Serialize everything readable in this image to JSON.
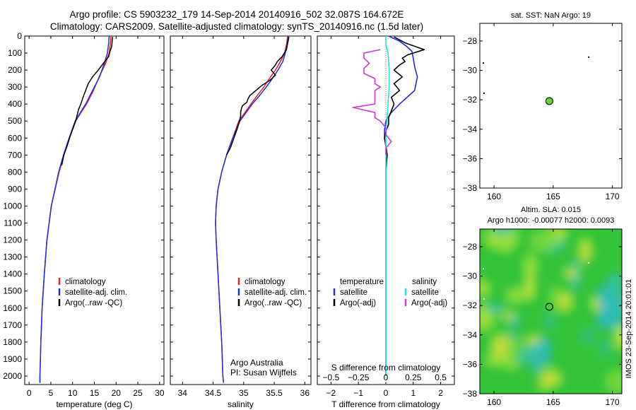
{
  "header": {
    "line1": "Argo profile: CS 5903232_179 14-Sep-2014 20140916_502 32.087S 164.672E",
    "line2": "Climatology: CARS2009. Satellite-adjusted climatology: synTS_20140916.nc (1.5d later)"
  },
  "side_stamp": "IMOS 23-Sep-2014 20:01:01",
  "colors": {
    "clim": "#e8231f",
    "sat": "#1f2ce8",
    "argo": "#000000",
    "sat_s": "#22e4e8",
    "argo_s": "#d23bd2",
    "dot": "#66d633"
  },
  "chart_data": [
    {
      "type": "line",
      "name": "temperature-profile",
      "xlabel": "temperature (deg C)",
      "ylabel": "",
      "xlim": [
        -1,
        31
      ],
      "ylim": [
        2050,
        0
      ],
      "xticks": [
        0,
        5,
        10,
        15,
        20,
        25,
        30
      ],
      "xticklabels": [
        "0",
        "5",
        "10",
        "15",
        "20",
        "25",
        "30"
      ],
      "yticks": [
        0,
        100,
        200,
        300,
        400,
        500,
        600,
        700,
        800,
        900,
        1000,
        1100,
        1200,
        1300,
        1400,
        1500,
        1600,
        1700,
        1800,
        1900,
        2000
      ],
      "yticklabels": [
        "0",
        "100",
        "200",
        "300",
        "400",
        "500",
        "600",
        "700",
        "800",
        "900",
        "1000",
        "1100",
        "1200",
        "1300",
        "1400",
        "1500",
        "1600",
        "1700",
        "1800",
        "1900",
        "2000"
      ],
      "legend": [
        "climatology",
        "satellite-adj. clim.",
        "Argo(..raw -QC)"
      ],
      "series": [
        {
          "key": "clim",
          "depth": [
            0,
            40,
            100,
            160,
            240,
            320,
            400,
            500,
            600,
            700,
            800,
            1000,
            1200,
            1400,
            1600,
            1800,
            2000,
            2040
          ],
          "values": [
            18.8,
            18.7,
            18.4,
            17.6,
            16.1,
            14.8,
            13.2,
            10.7,
            9.3,
            8.0,
            6.9,
            5.1,
            4.1,
            3.5,
            3.0,
            2.7,
            2.5,
            2.5
          ]
        },
        {
          "key": "sat",
          "depth": [
            0,
            40,
            100,
            160,
            240,
            320,
            400,
            500,
            600,
            700,
            800,
            1000,
            1200,
            1400,
            1600,
            1800,
            2000,
            2040
          ],
          "values": [
            18.4,
            18.3,
            18.0,
            17.3,
            16.2,
            14.6,
            13.0,
            10.6,
            9.2,
            7.9,
            6.8,
            5.1,
            4.1,
            3.5,
            3.0,
            2.7,
            2.5,
            2.5
          ]
        },
        {
          "key": "argo",
          "depth": [
            5,
            30,
            60,
            90,
            120,
            160,
            200,
            240,
            280,
            320,
            360,
            400,
            430,
            460,
            500,
            550,
            600,
            650,
            700,
            760
          ],
          "values": [
            19.2,
            19.1,
            19.0,
            18.6,
            18.3,
            17.1,
            15.9,
            14.6,
            13.6,
            13.0,
            12.4,
            11.9,
            11.4,
            11.1,
            10.7,
            10.0,
            9.3,
            8.7,
            8.0,
            7.5
          ]
        }
      ]
    },
    {
      "type": "line",
      "name": "salinity-profile",
      "xlabel": "salinity",
      "xlim": [
        33.8,
        36.1
      ],
      "ylim": [
        2050,
        0
      ],
      "xticks": [
        34,
        34.5,
        35,
        35.5,
        36
      ],
      "xticklabels": [
        "34",
        "34.5",
        "35",
        "35.5",
        "36"
      ],
      "legend": [
        "climatology",
        "satellite-adj. clim.",
        "Argo(..raw -QC)"
      ],
      "annotation": [
        "Argo Australia",
        "PI: Susan Wijffels"
      ],
      "series": [
        {
          "key": "clim",
          "depth": [
            0,
            50,
            100,
            150,
            200,
            250,
            300,
            350,
            400,
            500,
            600,
            700,
            800,
            900,
            1000,
            1100,
            1200,
            1400,
            1600,
            1800,
            2000,
            2040
          ],
          "values": [
            35.72,
            35.7,
            35.67,
            35.6,
            35.52,
            35.42,
            35.33,
            35.22,
            35.12,
            34.92,
            34.82,
            34.72,
            34.64,
            34.58,
            34.55,
            34.54,
            34.55,
            34.58,
            34.61,
            34.64,
            34.66,
            34.67
          ]
        },
        {
          "key": "sat",
          "depth": [
            0,
            50,
            100,
            150,
            200,
            250,
            300,
            350,
            400,
            500,
            600,
            700,
            800,
            900,
            1000,
            1100,
            1200,
            1400,
            1600,
            1800,
            2000,
            2040
          ],
          "values": [
            35.73,
            35.71,
            35.68,
            35.64,
            35.56,
            35.47,
            35.37,
            35.26,
            35.14,
            34.94,
            34.82,
            34.72,
            34.64,
            34.58,
            34.55,
            34.54,
            34.55,
            34.58,
            34.61,
            34.64,
            34.66,
            34.67
          ]
        },
        {
          "key": "argo",
          "depth": [
            5,
            40,
            80,
            120,
            150,
            170,
            200,
            230,
            260,
            290,
            320,
            350,
            370,
            390,
            410,
            430,
            450,
            470,
            500,
            540,
            580,
            620,
            660,
            700
          ],
          "values": [
            35.74,
            35.72,
            35.7,
            35.63,
            35.55,
            35.52,
            35.45,
            35.52,
            35.43,
            35.3,
            35.2,
            35.1,
            35.07,
            35.05,
            34.98,
            34.96,
            34.95,
            34.95,
            34.93,
            34.9,
            34.86,
            34.82,
            34.78,
            34.72
          ]
        }
      ]
    },
    {
      "type": "line",
      "name": "difference-profile",
      "xlabel": "T difference from climatology",
      "x2label": "S difference from climatology",
      "xlim": [
        -2.5,
        2.5
      ],
      "ylim": [
        2050,
        0
      ],
      "xticks": [
        -2,
        -1,
        0,
        1,
        2
      ],
      "xticklabels": [
        "−2",
        "−1",
        "0",
        "1",
        "2"
      ],
      "x2ticklabels": [
        "−0.5",
        "−0.25",
        "0",
        "0.25",
        "0.5"
      ],
      "legend_temperature": [
        "temperature",
        "satellite",
        "Argo(-adj)"
      ],
      "legend_salinity": [
        "salinity",
        "satellite",
        "Argo(-adj)"
      ],
      "series": [
        {
          "key": "sat",
          "depth": [
            0,
            30,
            60,
            90,
            130,
            180,
            240,
            320,
            400,
            450,
            500,
            550,
            600,
            650,
            700,
            800,
            1000,
            1200,
            1400,
            1600,
            1800,
            2000
          ],
          "values": [
            0.1,
            0.5,
            0.75,
            0.95,
            1.0,
            1.05,
            1.15,
            1.05,
            0.5,
            0.2,
            0.0,
            -0.05,
            -0.05,
            0.0,
            0.05,
            0.0,
            0.0,
            0.0,
            0.0,
            0.0,
            0.0,
            0.0
          ]
        },
        {
          "key": "argo",
          "depth": [
            5,
            40,
            80,
            110,
            130,
            150,
            170,
            200,
            240,
            280,
            320,
            360,
            400,
            440,
            480,
            520,
            560,
            600,
            640,
            700,
            760
          ],
          "values": [
            0.3,
            0.7,
            1.4,
            0.8,
            0.6,
            0.7,
            0.5,
            0.3,
            0.6,
            0.3,
            0.5,
            0.2,
            0.3,
            0.2,
            0.1,
            0.1,
            0.0,
            -0.05,
            0.0,
            0.05,
            0.0
          ]
        },
        {
          "key": "sat_s",
          "depth": [
            0,
            50,
            100,
            200,
            300,
            400,
            500,
            600,
            800,
            1000,
            1200,
            1400,
            1600,
            1800,
            2000
          ],
          "values": [
            0.0,
            0.0,
            0.02,
            0.03,
            0.03,
            0.02,
            0.01,
            0.0,
            0.0,
            0.0,
            0.0,
            0.0,
            0.0,
            0.0,
            0.0
          ]
        },
        {
          "key": "argo_s",
          "depth": [
            80,
            100,
            130,
            160,
            190,
            220,
            250,
            280,
            300,
            320,
            350,
            380,
            400,
            420,
            450,
            480,
            500,
            540,
            580,
            620,
            660,
            700
          ],
          "values": [
            -0.05,
            -0.2,
            -0.2,
            -0.15,
            -0.2,
            -0.2,
            -0.1,
            -0.1,
            -0.05,
            -0.1,
            -0.1,
            -0.1,
            -0.1,
            -0.3,
            -0.1,
            -0.1,
            -0.05,
            0.0,
            0.0,
            0.05,
            0.0,
            0.0
          ]
        }
      ]
    },
    {
      "type": "scatter",
      "name": "sst-map",
      "title": "sat. SST: NaN Argo: 19",
      "xlim": [
        158.8,
        170.8
      ],
      "ylim": [
        -38,
        -26.8
      ],
      "xticks": [
        160,
        165,
        170
      ],
      "xticklabels": [
        "160",
        "165",
        "170"
      ],
      "yticks": [
        -28,
        -30,
        -32,
        -34,
        -36,
        -38
      ],
      "yticklabels": [
        "−28",
        "−30",
        "−32",
        "−34",
        "−36",
        "−38"
      ],
      "points": [
        {
          "x": 164.67,
          "y": -32.087
        }
      ]
    },
    {
      "type": "heatmap",
      "name": "sla-map",
      "title": "Altim. SLA: 0.015",
      "subtitle": "Argo h1000: -0.00077 h2000: 0.0093",
      "xlim": [
        158.8,
        170.8
      ],
      "ylim": [
        -38,
        -26.8
      ],
      "xticks": [
        160,
        165,
        170
      ],
      "xticklabels": [
        "160",
        "165",
        "170"
      ],
      "yticks": [
        -28,
        -30,
        -32,
        -34,
        -36,
        -38
      ],
      "yticklabels": [
        "−28",
        "−30",
        "−32",
        "−34",
        "−36",
        "−38"
      ],
      "points": [
        {
          "x": 164.67,
          "y": -32.087
        }
      ]
    }
  ]
}
